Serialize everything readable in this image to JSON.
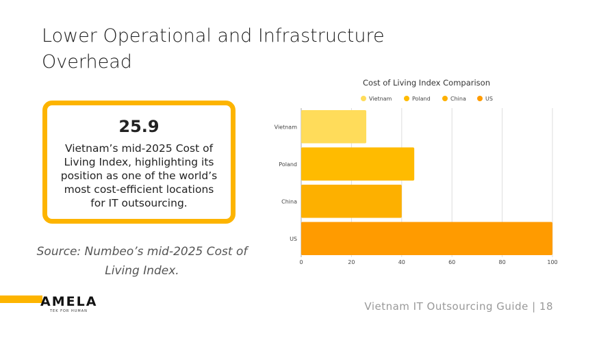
{
  "slide": {
    "title": "Lower Operational and Infrastructure Overhead",
    "stat_value": "25.9",
    "stat_description": "Vietnam’s mid-2025 Cost of Living Index, highlighting its position as one of the world’s most cost-efficient locations for IT outsourcing.",
    "source": "Source: Numbeo’s mid-2025 Cost of Living Index.",
    "logo_text": "AMELA",
    "logo_tagline": "TEK FOR HUMAN",
    "footer": "Vietnam IT Outsourcing Guide | 18",
    "accent_color": "#fdb400"
  },
  "chart_data": {
    "type": "bar",
    "orientation": "horizontal",
    "title": "Cost of Living Index Comparison",
    "categories": [
      "Vietnam",
      "Poland",
      "China",
      "US"
    ],
    "values": [
      25.9,
      45,
      40,
      100
    ],
    "colors": [
      "#ffdc5a",
      "#ffbb00",
      "#fdb000",
      "#ff9b00"
    ],
    "legend": [
      "Vietnam",
      "Poland",
      "China",
      "US"
    ],
    "legend_position": "top",
    "xlim": [
      0,
      100
    ],
    "xticks": [
      "0",
      "20",
      "40",
      "60",
      "80",
      "100"
    ],
    "grid": true
  }
}
